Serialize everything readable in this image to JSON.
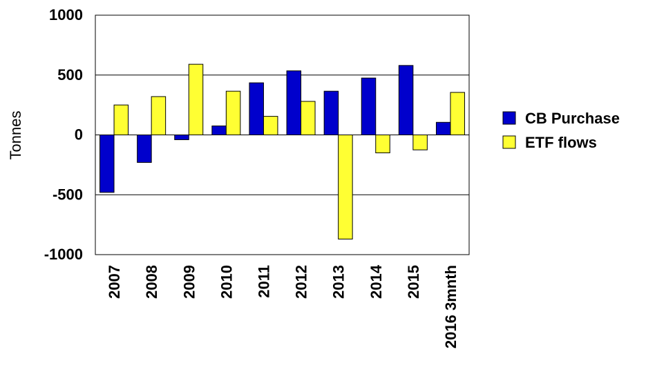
{
  "chart_data": {
    "type": "bar",
    "title": "",
    "xlabel": "",
    "ylabel": "Tonnes",
    "ylim": [
      -1000,
      1000
    ],
    "yticks": [
      "1000",
      "500",
      "0",
      "-500",
      "-1000"
    ],
    "grid": true,
    "legend_position": "right",
    "categories": [
      "2007",
      "2008",
      "2009",
      "2010",
      "2011",
      "2012",
      "2013",
      "2014",
      "2015",
      "2016 3mnth"
    ],
    "series": [
      {
        "name": "CB Purchase",
        "color": "#0000cc",
        "values": [
          -480,
          -230,
          -40,
          75,
          435,
          535,
          365,
          475,
          580,
          105
        ]
      },
      {
        "name": "ETF flows",
        "color": "#ffff33",
        "values": [
          250,
          320,
          590,
          365,
          155,
          280,
          -870,
          -150,
          -125,
          355
        ]
      }
    ]
  }
}
